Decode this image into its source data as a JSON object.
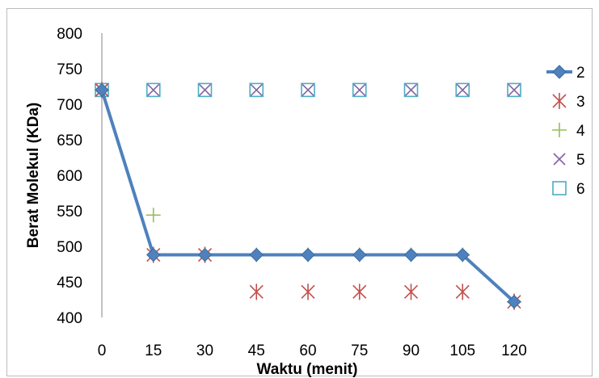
{
  "chart_data": {
    "type": "line",
    "xlabel": "Waktu (menit)",
    "ylabel": "Berat Molekul (KDa)",
    "x": [
      0,
      15,
      30,
      45,
      60,
      75,
      90,
      105,
      120
    ],
    "x_ticks": [
      "0",
      "15",
      "30",
      "45",
      "60",
      "75",
      "90",
      "105",
      "120"
    ],
    "ylim": [
      400,
      800
    ],
    "y_ticks": [
      "400",
      "450",
      "500",
      "550",
      "600",
      "650",
      "700",
      "750",
      "800"
    ],
    "grid": false,
    "legend_position": "right",
    "series": [
      {
        "name": "2",
        "style": "line-diamond",
        "color": "#4f81bd",
        "values": [
          720,
          488,
          488,
          488,
          488,
          488,
          488,
          488,
          422
        ]
      },
      {
        "name": "3",
        "style": "star",
        "color": "#c0504d",
        "values": [
          720,
          488,
          488,
          436,
          436,
          436,
          436,
          436,
          422
        ]
      },
      {
        "name": "4",
        "style": "plus",
        "color": "#9bbb59",
        "values": [
          720,
          544,
          488,
          488,
          488,
          488,
          488,
          488,
          422
        ]
      },
      {
        "name": "5",
        "style": "x",
        "color": "#8064a2",
        "values": [
          720,
          720,
          720,
          720,
          720,
          720,
          720,
          720,
          720
        ]
      },
      {
        "name": "6",
        "style": "square",
        "color": "#4bacc6",
        "values": [
          720,
          720,
          720,
          720,
          720,
          720,
          720,
          720,
          720
        ]
      }
    ]
  }
}
